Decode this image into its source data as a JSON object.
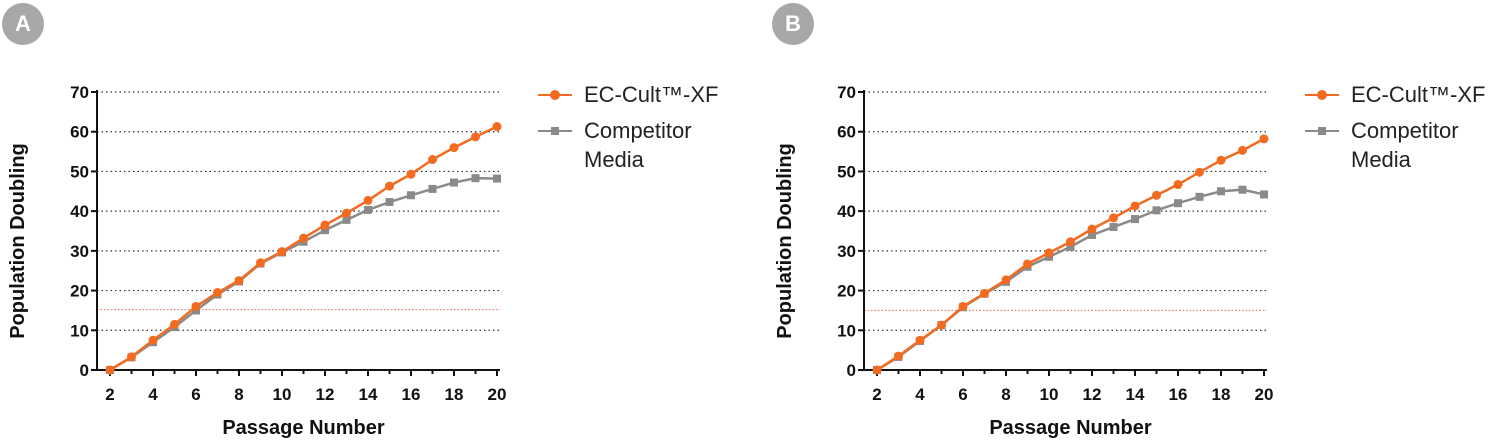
{
  "panels": [
    {
      "badge": "A",
      "legend": {
        "ec_cult": "EC-Cult™-XF",
        "competitor_line1": "Competitor",
        "competitor_line2": "Media"
      }
    },
    {
      "badge": "B",
      "legend": {
        "ec_cult": "EC-Cult™-XF",
        "competitor_line1": "Competitor",
        "competitor_line2": "Media"
      }
    }
  ],
  "colors": {
    "ec_cult": "#f26b21",
    "competitor": "#8a8a8a",
    "reference_line": "#e0605a",
    "badge": "#a7a7a7"
  },
  "chart_data": [
    {
      "type": "line",
      "panel": "A",
      "title": "",
      "xlabel": "Passage Number",
      "ylabel": "Population Doubling",
      "xlim": [
        2,
        20
      ],
      "ylim": [
        0,
        70
      ],
      "xticks": [
        2,
        4,
        6,
        8,
        10,
        12,
        14,
        16,
        18,
        20
      ],
      "yticks": [
        0,
        10,
        20,
        30,
        40,
        50,
        60,
        70
      ],
      "grid": "horizontal dotted",
      "legend_position": "right",
      "reference_line_y": 15.2,
      "x": [
        2,
        3,
        4,
        5,
        6,
        7,
        8,
        9,
        10,
        11,
        12,
        13,
        14,
        15,
        16,
        17,
        18,
        19,
        20
      ],
      "series": [
        {
          "name": "EC-Cult™-XF",
          "marker": "circle",
          "values": [
            0,
            3.3,
            7.5,
            11.5,
            16.0,
            19.5,
            22.5,
            27.0,
            29.8,
            33.2,
            36.5,
            39.5,
            42.7,
            46.3,
            49.3,
            53.0,
            56.0,
            58.7,
            61.3
          ]
        },
        {
          "name": "Competitor Media",
          "marker": "square",
          "values": [
            0,
            3.2,
            7.0,
            10.8,
            15.0,
            19.0,
            22.3,
            26.8,
            29.6,
            32.3,
            35.2,
            37.8,
            40.3,
            42.3,
            44.0,
            45.6,
            47.2,
            48.3,
            48.2
          ]
        }
      ]
    },
    {
      "type": "line",
      "panel": "B",
      "title": "",
      "xlabel": "Passage Number",
      "ylabel": "Population Doubling",
      "xlim": [
        2,
        20
      ],
      "ylim": [
        0,
        70
      ],
      "xticks": [
        2,
        4,
        6,
        8,
        10,
        12,
        14,
        16,
        18,
        20
      ],
      "yticks": [
        0,
        10,
        20,
        30,
        40,
        50,
        60,
        70
      ],
      "grid": "horizontal dotted",
      "legend_position": "right",
      "reference_line_y": 15.0,
      "x": [
        2,
        3,
        4,
        5,
        6,
        7,
        8,
        9,
        10,
        11,
        12,
        13,
        14,
        15,
        16,
        17,
        18,
        19,
        20
      ],
      "series": [
        {
          "name": "EC-Cult™-XF",
          "marker": "circle",
          "values": [
            0,
            3.5,
            7.5,
            11.3,
            16.0,
            19.3,
            22.7,
            26.7,
            29.5,
            32.3,
            35.5,
            38.3,
            41.3,
            44.0,
            46.7,
            49.8,
            52.8,
            55.3,
            58.2
          ]
        },
        {
          "name": "Competitor Media",
          "marker": "square",
          "values": [
            0,
            3.3,
            7.3,
            11.3,
            15.8,
            19.2,
            22.2,
            26.0,
            28.5,
            31.0,
            34.0,
            36.0,
            38.0,
            40.2,
            42.0,
            43.6,
            45.0,
            45.4,
            44.2
          ]
        }
      ]
    }
  ]
}
